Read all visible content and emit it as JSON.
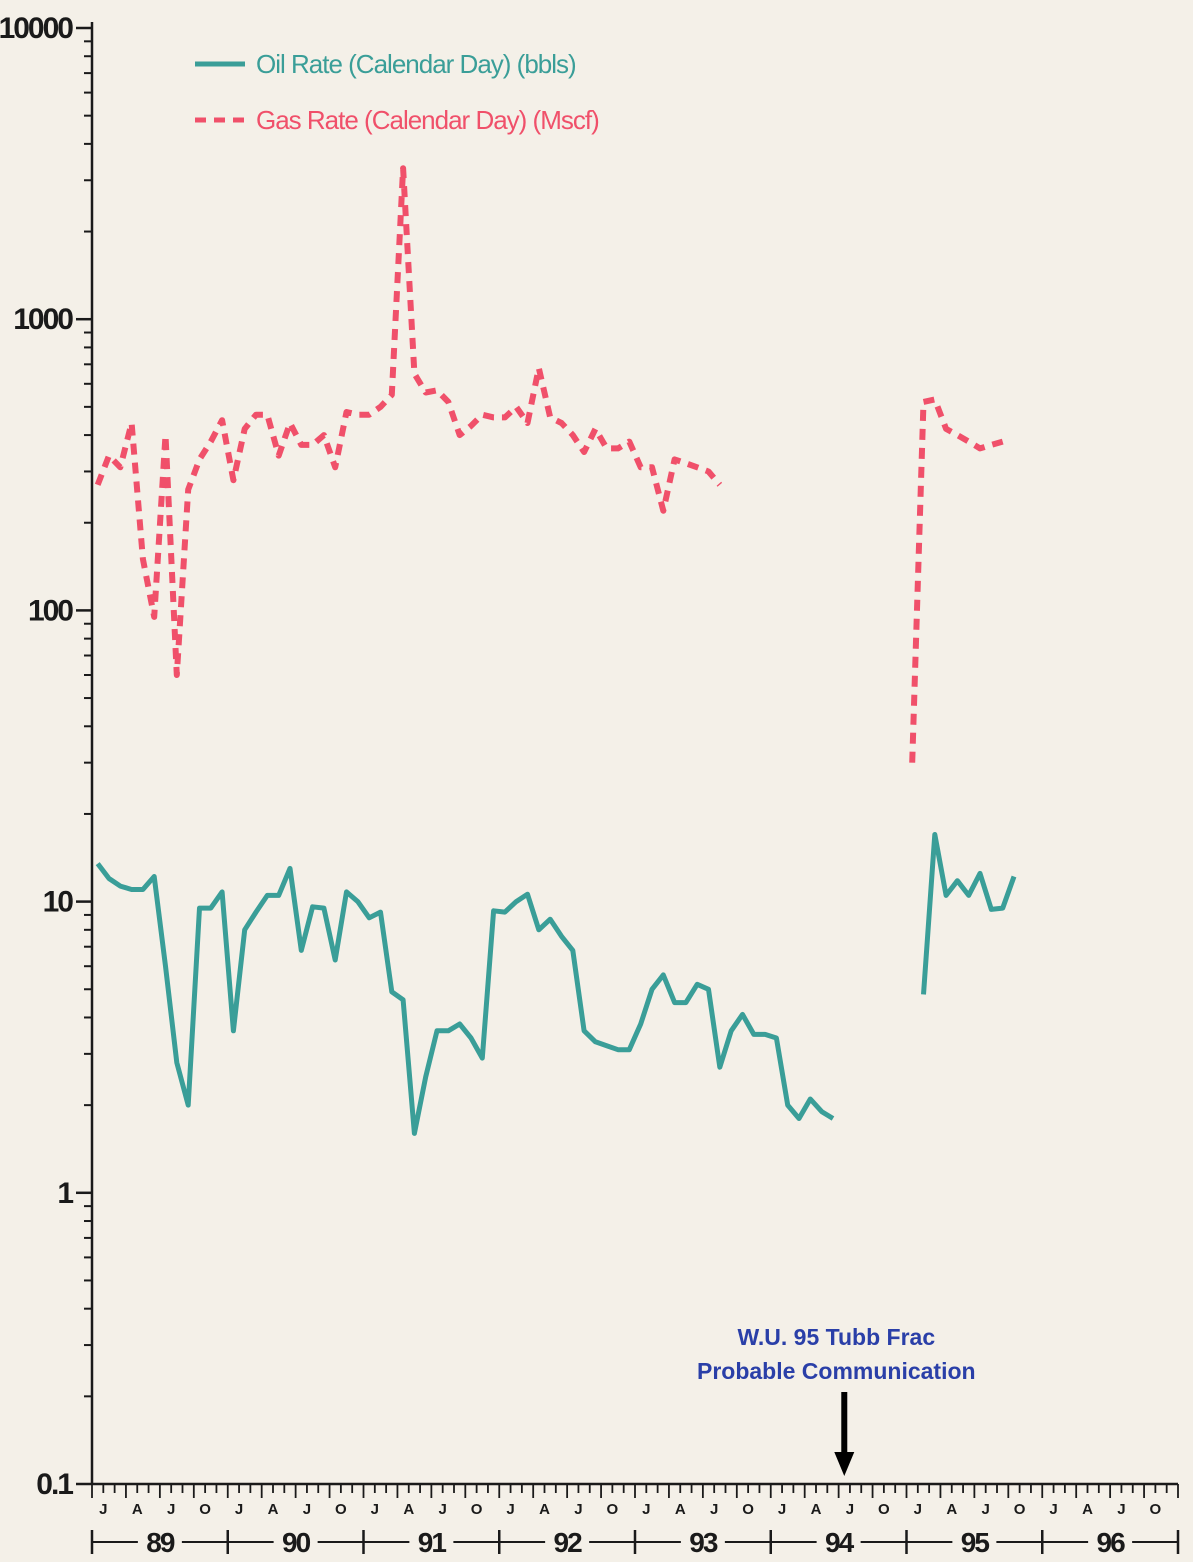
{
  "chart_data": {
    "type": "line",
    "yscale": "log",
    "ylim": [
      0.1,
      10000
    ],
    "y_tick_labels": [
      "0.1",
      "1",
      "10",
      "100",
      "1000",
      "10000"
    ],
    "x_axis": {
      "start": "1989-01",
      "end": "1996-12",
      "month_labels": [
        "J",
        "A",
        "J",
        "O"
      ],
      "year_labels": [
        "89",
        "90",
        "91",
        "92",
        "93",
        "94",
        "95",
        "96"
      ]
    },
    "legend": {
      "position": "top-left"
    },
    "colors": {
      "oil": "#3a9e98",
      "gas": "#f0506a",
      "annotation": "#2a3fa8"
    },
    "series": [
      {
        "name": "Oil Rate (Calendar Day) (bbls)",
        "style": "solid",
        "points": [
          [
            "1989-01",
            13.5
          ],
          [
            "1989-02",
            12
          ],
          [
            "1989-03",
            11.3
          ],
          [
            "1989-04",
            11
          ],
          [
            "1989-05",
            11
          ],
          [
            "1989-06",
            12.2
          ],
          [
            "1989-07",
            6
          ],
          [
            "1989-08",
            2.8
          ],
          [
            "1989-09",
            2.0
          ],
          [
            "1989-10",
            9.5
          ],
          [
            "1989-11",
            9.5
          ],
          [
            "1989-12",
            10.8
          ],
          [
            "1990-01",
            3.6
          ],
          [
            "1990-02",
            8
          ],
          [
            "1990-03",
            9.2
          ],
          [
            "1990-04",
            10.5
          ],
          [
            "1990-05",
            10.5
          ],
          [
            "1990-06",
            13
          ],
          [
            "1990-07",
            6.8
          ],
          [
            "1990-08",
            9.6
          ],
          [
            "1990-09",
            9.5
          ],
          [
            "1990-10",
            6.3
          ],
          [
            "1990-11",
            10.8
          ],
          [
            "1990-12",
            10
          ],
          [
            "1991-01",
            8.8
          ],
          [
            "1991-02",
            9.2
          ],
          [
            "1991-03",
            4.9
          ],
          [
            "1991-04",
            4.6
          ],
          [
            "1991-05",
            1.6
          ],
          [
            "1991-06",
            2.5
          ],
          [
            "1991-07",
            3.6
          ],
          [
            "1991-08",
            3.6
          ],
          [
            "1991-09",
            3.8
          ],
          [
            "1991-10",
            3.4
          ],
          [
            "1991-11",
            2.9
          ],
          [
            "1991-12",
            9.3
          ],
          [
            "1992-01",
            9.2
          ],
          [
            "1992-02",
            10
          ],
          [
            "1992-03",
            10.6
          ],
          [
            "1992-04",
            8
          ],
          [
            "1992-05",
            8.7
          ],
          [
            "1992-06",
            7.6
          ],
          [
            "1992-07",
            6.8
          ],
          [
            "1992-08",
            3.6
          ],
          [
            "1992-09",
            3.3
          ],
          [
            "1992-10",
            3.2
          ],
          [
            "1992-11",
            3.1
          ],
          [
            "1992-12",
            3.1
          ],
          [
            "1993-01",
            3.8
          ],
          [
            "1993-02",
            5.0
          ],
          [
            "1993-03",
            5.6
          ],
          [
            "1993-04",
            4.5
          ],
          [
            "1993-05",
            4.5
          ],
          [
            "1993-06",
            5.2
          ],
          [
            "1993-07",
            5.0
          ],
          [
            "1993-08",
            2.7
          ],
          [
            "1993-09",
            3.6
          ],
          [
            "1993-10",
            4.1
          ],
          [
            "1993-11",
            3.5
          ],
          [
            "1993-12",
            3.5
          ],
          [
            "1994-01",
            3.4
          ],
          [
            "1994-02",
            2.0
          ],
          [
            "1994-03",
            1.8
          ],
          [
            "1994-04",
            2.1
          ],
          [
            "1994-05",
            1.9
          ],
          [
            "1994-06",
            1.8
          ],
          [
            "1995-02",
            4.8
          ],
          [
            "1995-03",
            17
          ],
          [
            "1995-04",
            10.5
          ],
          [
            "1995-05",
            11.8
          ],
          [
            "1995-06",
            10.5
          ],
          [
            "1995-07",
            12.5
          ],
          [
            "1995-08",
            9.4
          ],
          [
            "1995-09",
            9.5
          ],
          [
            "1995-10",
            12.2
          ]
        ]
      },
      {
        "name": "Gas Rate (Calendar Day) (Mscf)",
        "style": "dashed",
        "points": [
          [
            "1989-01",
            270
          ],
          [
            "1989-02",
            340
          ],
          [
            "1989-03",
            310
          ],
          [
            "1989-04",
            440
          ],
          [
            "1989-05",
            150
          ],
          [
            "1989-06",
            95
          ],
          [
            "1989-07",
            400
          ],
          [
            "1989-08",
            60
          ],
          [
            "1989-09",
            260
          ],
          [
            "1989-10",
            330
          ],
          [
            "1989-11",
            380
          ],
          [
            "1989-12",
            450
          ],
          [
            "1990-01",
            280
          ],
          [
            "1990-02",
            420
          ],
          [
            "1990-03",
            470
          ],
          [
            "1990-04",
            470
          ],
          [
            "1990-05",
            340
          ],
          [
            "1990-06",
            440
          ],
          [
            "1990-07",
            370
          ],
          [
            "1990-08",
            370
          ],
          [
            "1990-09",
            400
          ],
          [
            "1990-10",
            310
          ],
          [
            "1990-11",
            480
          ],
          [
            "1990-12",
            470
          ],
          [
            "1991-01",
            470
          ],
          [
            "1991-02",
            500
          ],
          [
            "1991-03",
            550
          ],
          [
            "1991-04",
            3300
          ],
          [
            "1991-05",
            650
          ],
          [
            "1991-06",
            560
          ],
          [
            "1991-07",
            570
          ],
          [
            "1991-08",
            520
          ],
          [
            "1991-09",
            400
          ],
          [
            "1991-10",
            430
          ],
          [
            "1991-11",
            470
          ],
          [
            "1991-12",
            460
          ],
          [
            "1992-01",
            460
          ],
          [
            "1992-02",
            500
          ],
          [
            "1992-03",
            440
          ],
          [
            "1992-04",
            680
          ],
          [
            "1992-05",
            460
          ],
          [
            "1992-06",
            440
          ],
          [
            "1992-07",
            400
          ],
          [
            "1992-08",
            350
          ],
          [
            "1992-09",
            420
          ],
          [
            "1992-10",
            360
          ],
          [
            "1992-11",
            360
          ],
          [
            "1992-12",
            380
          ],
          [
            "1993-01",
            310
          ],
          [
            "1993-02",
            310
          ],
          [
            "1993-03",
            220
          ],
          [
            "1993-04",
            330
          ],
          [
            "1993-05",
            320
          ],
          [
            "1993-06",
            310
          ],
          [
            "1993-07",
            300
          ],
          [
            "1993-08",
            270
          ],
          [
            "1995-01",
            30
          ],
          [
            "1995-02",
            520
          ],
          [
            "1995-03",
            530
          ],
          [
            "1995-04",
            420
          ],
          [
            "1995-05",
            400
          ],
          [
            "1995-06",
            380
          ],
          [
            "1995-07",
            360
          ],
          [
            "1995-08",
            370
          ],
          [
            "1995-09",
            380
          ]
        ]
      }
    ],
    "annotations": [
      {
        "lines": [
          "W.U. 95 Tubb Frac",
          "Probable Communication"
        ],
        "x": "1994-07",
        "arrow": "down-to-axis"
      }
    ]
  }
}
